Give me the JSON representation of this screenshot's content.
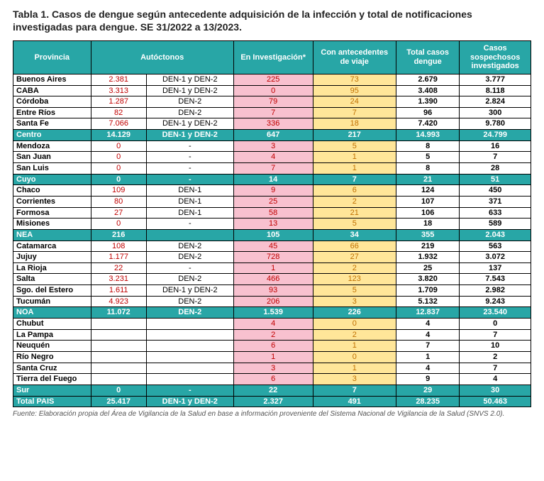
{
  "title": "Tabla 1. Casos de dengue según antecedente adquisición de la infección y total de notificaciones investigadas para dengue. SE 31/2022 a 13/2023.",
  "footnote": "Fuente: Elaboración propia del Área de Vigilancia de la Salud en base a información proveniente del Sistema Nacional de Vigilancia de la Salud (SNVS 2.0).",
  "columns": {
    "provincia": "Provincia",
    "autoctonos": "Autóctonos",
    "investigacion": "En Investigación*",
    "viaje": "Con antecedentes de viaje",
    "total": "Total casos dengue",
    "sospechosos": "Casos sospechosos investigados"
  },
  "colors": {
    "header_bg": "#28a6a6",
    "header_fg": "#ffffff",
    "auto_fg": "#c00000",
    "inv_bg": "#f8c1cf",
    "inv_fg": "#c00000",
    "via_bg": "#ffe699",
    "via_fg": "#c07000",
    "border": "#000000"
  },
  "rows": [
    {
      "prov": "Buenos Aires",
      "auto": "2.381",
      "ser": "DEN-1 y DEN-2",
      "inv": "225",
      "via": "73",
      "tot": "2.679",
      "sus": "3.777"
    },
    {
      "prov": "CABA",
      "auto": "3.313",
      "ser": "DEN-1 y DEN-2",
      "inv": "0",
      "via": "95",
      "tot": "3.408",
      "sus": "8.118"
    },
    {
      "prov": "Córdoba",
      "auto": "1.287",
      "ser": "DEN-2",
      "inv": "79",
      "via": "24",
      "tot": "1.390",
      "sus": "2.824"
    },
    {
      "prov": "Entre Ríos",
      "auto": "82",
      "ser": "DEN-2",
      "inv": "7",
      "via": "7",
      "tot": "96",
      "sus": "300"
    },
    {
      "prov": "Santa Fe",
      "auto": "7.066",
      "ser": "DEN-1 y DEN-2",
      "inv": "336",
      "via": "18",
      "tot": "7.420",
      "sus": "9.780"
    },
    {
      "region": true,
      "prov": "Centro",
      "auto": "14.129",
      "ser": "DEN-1 y DEN-2",
      "inv": "647",
      "via": "217",
      "tot": "14.993",
      "sus": "24.799"
    },
    {
      "prov": "Mendoza",
      "auto": "0",
      "ser": "-",
      "inv": "3",
      "via": "5",
      "tot": "8",
      "sus": "16"
    },
    {
      "prov": "San Juan",
      "auto": "0",
      "ser": "-",
      "inv": "4",
      "via": "1",
      "tot": "5",
      "sus": "7"
    },
    {
      "prov": "San Luis",
      "auto": "0",
      "ser": "-",
      "inv": "7",
      "via": "1",
      "tot": "8",
      "sus": "28"
    },
    {
      "region": true,
      "prov": "Cuyo",
      "auto": "0",
      "ser": "-",
      "inv": "14",
      "via": "7",
      "tot": "21",
      "sus": "51"
    },
    {
      "prov": "Chaco",
      "auto": "109",
      "ser": "DEN-1",
      "inv": "9",
      "via": "6",
      "tot": "124",
      "sus": "450"
    },
    {
      "prov": "Corrientes",
      "auto": "80",
      "ser": "DEN-1",
      "inv": "25",
      "via": "2",
      "tot": "107",
      "sus": "371"
    },
    {
      "prov": "Formosa",
      "auto": "27",
      "ser": "DEN-1",
      "inv": "58",
      "via": "21",
      "tot": "106",
      "sus": "633"
    },
    {
      "prov": "Misiones",
      "auto": "0",
      "ser": "-",
      "inv": "13",
      "via": "5",
      "tot": "18",
      "sus": "589"
    },
    {
      "region": true,
      "prov": "NEA",
      "auto": "216",
      "ser": "",
      "inv": "105",
      "via": "34",
      "tot": "355",
      "sus": "2.043"
    },
    {
      "prov": "Catamarca",
      "auto": "108",
      "ser": "DEN-2",
      "inv": "45",
      "via": "66",
      "tot": "219",
      "sus": "563"
    },
    {
      "prov": "Jujuy",
      "auto": "1.177",
      "ser": "DEN-2",
      "inv": "728",
      "via": "27",
      "tot": "1.932",
      "sus": "3.072"
    },
    {
      "prov": "La Rioja",
      "auto": "22",
      "ser": "-",
      "inv": "1",
      "via": "2",
      "tot": "25",
      "sus": "137"
    },
    {
      "prov": "Salta",
      "auto": "3.231",
      "ser": "DEN-2",
      "inv": "466",
      "via": "123",
      "tot": "3.820",
      "sus": "7.543"
    },
    {
      "prov": "Sgo. del Estero",
      "auto": "1.611",
      "ser": "DEN-1 y DEN-2",
      "inv": "93",
      "via": "5",
      "tot": "1.709",
      "sus": "2.982"
    },
    {
      "prov": "Tucumán",
      "auto": "4.923",
      "ser": "DEN-2",
      "inv": "206",
      "via": "3",
      "tot": "5.132",
      "sus": "9.243"
    },
    {
      "region": true,
      "prov": "NOA",
      "auto": "11.072",
      "ser": "DEN-2",
      "inv": "1.539",
      "via": "226",
      "tot": "12.837",
      "sus": "23.540"
    },
    {
      "prov": "Chubut",
      "auto": "",
      "ser": "",
      "inv": "4",
      "via": "0",
      "tot": "4",
      "sus": "0"
    },
    {
      "prov": "La Pampa",
      "auto": "",
      "ser": "",
      "inv": "2",
      "via": "2",
      "tot": "4",
      "sus": "7"
    },
    {
      "prov": "Neuquén",
      "auto": "",
      "ser": "",
      "inv": "6",
      "via": "1",
      "tot": "7",
      "sus": "10"
    },
    {
      "prov": "Río Negro",
      "auto": "",
      "ser": "",
      "inv": "1",
      "via": "0",
      "tot": "1",
      "sus": "2"
    },
    {
      "prov": "Santa Cruz",
      "auto": "",
      "ser": "",
      "inv": "3",
      "via": "1",
      "tot": "4",
      "sus": "7"
    },
    {
      "prov": "Tierra del Fuego",
      "auto": "",
      "ser": "",
      "inv": "6",
      "via": "3",
      "tot": "9",
      "sus": "4"
    },
    {
      "region": true,
      "prov": "Sur",
      "auto": "0",
      "ser": "-",
      "inv": "22",
      "via": "7",
      "tot": "29",
      "sus": "30"
    },
    {
      "region": true,
      "prov": "Total PAIS",
      "auto": "25.417",
      "ser": "DEN-1 y DEN-2",
      "inv": "2.327",
      "via": "491",
      "tot": "28.235",
      "sus": "50.463"
    }
  ]
}
